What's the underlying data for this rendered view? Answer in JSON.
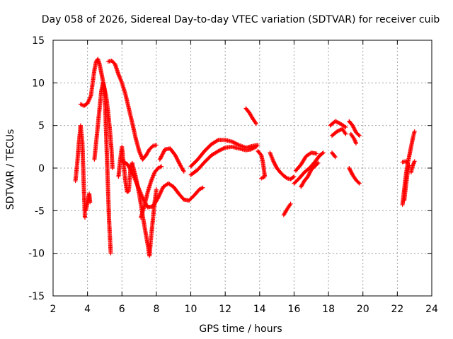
{
  "chart_data": {
    "type": "scatter",
    "title": "Day 058 of 2026, Sidereal Day-to-day VTEC variation (SDTVAR) for receiver cuib",
    "xlabel": "GPS time / hours",
    "ylabel": "SDTVAR / TECUs",
    "xlim": [
      2,
      24
    ],
    "ylim": [
      -15,
      15
    ],
    "xticks": [
      "2",
      "4",
      "6",
      "8",
      "10",
      "12",
      "14",
      "16",
      "18",
      "20",
      "22",
      "24"
    ],
    "yticks": [
      "15",
      "10",
      "5",
      "0",
      "-5",
      "-10",
      "-15"
    ],
    "grid": true,
    "marker": "+",
    "color": "#ff0000",
    "series": [
      {
        "name": "s1",
        "points": [
          [
            3.3,
            -1.5
          ],
          [
            3.4,
            0.5
          ],
          [
            3.5,
            3
          ],
          [
            3.6,
            5
          ],
          [
            3.7,
            3
          ],
          [
            3.75,
            0
          ],
          [
            3.8,
            -3
          ],
          [
            3.85,
            -5.8
          ]
        ]
      },
      {
        "name": "s2",
        "points": [
          [
            3.6,
            7.5
          ],
          [
            3.8,
            7.3
          ],
          [
            4.0,
            7.6
          ],
          [
            4.2,
            8.5
          ],
          [
            4.3,
            10
          ],
          [
            4.4,
            11.5
          ],
          [
            4.5,
            12.5
          ],
          [
            4.6,
            12.8
          ],
          [
            4.7,
            12.2
          ],
          [
            4.8,
            11.2
          ],
          [
            4.9,
            10.2
          ],
          [
            5.0,
            9.2
          ],
          [
            5.1,
            8.2
          ],
          [
            5.2,
            6.5
          ],
          [
            5.3,
            4.5
          ],
          [
            5.4,
            2
          ],
          [
            5.45,
            0
          ]
        ]
      },
      {
        "name": "s3",
        "points": [
          [
            3.9,
            -5
          ],
          [
            4.0,
            -4
          ],
          [
            4.1,
            -3
          ],
          [
            4.15,
            -4
          ]
        ]
      },
      {
        "name": "s4",
        "points": [
          [
            4.4,
            1
          ],
          [
            4.5,
            3
          ],
          [
            4.6,
            5
          ],
          [
            4.7,
            7
          ],
          [
            4.8,
            9
          ],
          [
            4.9,
            10
          ],
          [
            5.0,
            9
          ],
          [
            5.05,
            6
          ],
          [
            5.1,
            3
          ],
          [
            5.15,
            0
          ],
          [
            5.2,
            -3
          ],
          [
            5.25,
            -6
          ],
          [
            5.3,
            -8
          ],
          [
            5.35,
            -10
          ]
        ]
      },
      {
        "name": "s5",
        "points": [
          [
            5.2,
            12.5
          ],
          [
            5.4,
            12.6
          ],
          [
            5.6,
            12.2
          ],
          [
            5.8,
            11
          ],
          [
            6.0,
            10
          ],
          [
            6.2,
            8.7
          ],
          [
            6.4,
            7
          ],
          [
            6.6,
            5.3
          ],
          [
            6.8,
            3.5
          ],
          [
            7.0,
            2
          ],
          [
            7.2,
            1
          ],
          [
            7.4,
            1.5
          ],
          [
            7.6,
            2.2
          ],
          [
            7.8,
            2.6
          ],
          [
            8.0,
            2.7
          ]
        ]
      },
      {
        "name": "s6",
        "points": [
          [
            5.8,
            -1
          ],
          [
            5.9,
            1
          ],
          [
            6.0,
            2.5
          ],
          [
            6.1,
            0.5
          ],
          [
            6.2,
            -1.5
          ],
          [
            6.3,
            -2.8
          ],
          [
            6.4,
            -2.7
          ],
          [
            6.5,
            0
          ],
          [
            6.6,
            0.6
          ]
        ]
      },
      {
        "name": "s7",
        "points": [
          [
            6.6,
            0.5
          ],
          [
            6.8,
            -1
          ],
          [
            7.0,
            -3
          ],
          [
            7.2,
            -5.5
          ],
          [
            7.35,
            -7.3
          ],
          [
            7.5,
            -9
          ],
          [
            7.6,
            -10.3
          ],
          [
            7.7,
            -8
          ],
          [
            7.8,
            -6
          ],
          [
            7.9,
            -4
          ],
          [
            8.0,
            -2.5
          ]
        ]
      },
      {
        "name": "s8",
        "points": [
          [
            6.0,
            0.8
          ],
          [
            6.3,
            0.5
          ],
          [
            6.6,
            -0.5
          ],
          [
            6.9,
            -2
          ],
          [
            7.2,
            -3.5
          ],
          [
            7.5,
            -4.6
          ],
          [
            7.8,
            -4.5
          ],
          [
            8.1,
            -3.5
          ],
          [
            8.4,
            -2.2
          ],
          [
            8.7,
            -1.8
          ],
          [
            9.0,
            -2.2
          ],
          [
            9.3,
            -3
          ],
          [
            9.6,
            -3.7
          ],
          [
            9.9,
            -3.8
          ],
          [
            10.2,
            -3.2
          ],
          [
            10.5,
            -2.5
          ],
          [
            10.7,
            -2.3
          ]
        ]
      },
      {
        "name": "s9",
        "points": [
          [
            7.1,
            -5.8
          ],
          [
            7.3,
            -4.5
          ],
          [
            7.5,
            -2.8
          ],
          [
            7.7,
            -1.5
          ],
          [
            7.9,
            -0.5
          ],
          [
            8.1,
            0
          ],
          [
            8.3,
            0.2
          ]
        ]
      },
      {
        "name": "s10",
        "points": [
          [
            8.2,
            1
          ],
          [
            8.5,
            2.2
          ],
          [
            8.8,
            2.3
          ],
          [
            9.1,
            1.5
          ],
          [
            9.4,
            0.3
          ],
          [
            9.6,
            -0.4
          ]
        ]
      },
      {
        "name": "s11",
        "points": [
          [
            10.0,
            0.2
          ],
          [
            10.4,
            1
          ],
          [
            10.8,
            2
          ],
          [
            11.2,
            2.8
          ],
          [
            11.6,
            3.3
          ],
          [
            12.0,
            3.3
          ],
          [
            12.4,
            3.1
          ],
          [
            12.8,
            2.7
          ],
          [
            13.2,
            2.4
          ],
          [
            13.6,
            2.6
          ],
          [
            13.9,
            2.7
          ]
        ]
      },
      {
        "name": "s12",
        "points": [
          [
            10.0,
            -0.8
          ],
          [
            10.4,
            -0.2
          ],
          [
            10.8,
            0.7
          ],
          [
            11.2,
            1.5
          ],
          [
            11.6,
            2
          ],
          [
            12.0,
            2.4
          ],
          [
            12.4,
            2.5
          ],
          [
            12.8,
            2.3
          ],
          [
            13.2,
            2.1
          ],
          [
            13.5,
            2.2
          ],
          [
            13.8,
            2.5
          ]
        ]
      },
      {
        "name": "s13",
        "points": [
          [
            13.2,
            7
          ],
          [
            13.4,
            6.5
          ],
          [
            13.6,
            5.8
          ],
          [
            13.8,
            5.2
          ]
        ]
      },
      {
        "name": "s14",
        "points": [
          [
            13.9,
            2
          ],
          [
            14.1,
            1.5
          ],
          [
            14.2,
            0.6
          ],
          [
            14.3,
            -1
          ],
          [
            14.1,
            -1.2
          ]
        ]
      },
      {
        "name": "s15",
        "points": [
          [
            14.6,
            1.8
          ],
          [
            14.8,
            0.8
          ],
          [
            15.0,
            0
          ],
          [
            15.2,
            -0.5
          ],
          [
            15.4,
            -0.9
          ],
          [
            15.6,
            -1.2
          ],
          [
            15.8,
            -1.3
          ],
          [
            16.0,
            -1
          ]
        ]
      },
      {
        "name": "s16",
        "points": [
          [
            15.4,
            -5.5
          ],
          [
            15.6,
            -4.8
          ],
          [
            15.8,
            -4.2
          ]
        ]
      },
      {
        "name": "s17",
        "points": [
          [
            16.0,
            -1.8
          ],
          [
            16.3,
            -1.2
          ],
          [
            16.6,
            -0.5
          ],
          [
            16.9,
            0
          ],
          [
            17.2,
            0.7
          ],
          [
            17.5,
            1.5
          ],
          [
            17.7,
            1.8
          ]
        ]
      },
      {
        "name": "s18",
        "points": [
          [
            16.4,
            -2.2
          ],
          [
            16.6,
            -1.5
          ],
          [
            16.8,
            -1
          ],
          [
            17.0,
            -0.2
          ],
          [
            17.2,
            0.2
          ],
          [
            17.4,
            0.6
          ]
        ]
      },
      {
        "name": "s19",
        "points": [
          [
            16.1,
            -0.3
          ],
          [
            16.4,
            0.4
          ],
          [
            16.7,
            1.4
          ],
          [
            17.0,
            1.8
          ],
          [
            17.3,
            1.7
          ]
        ]
      },
      {
        "name": "s20",
        "points": [
          [
            18.1,
            5
          ],
          [
            18.4,
            5.5
          ],
          [
            18.7,
            5.2
          ],
          [
            19.0,
            4.8
          ]
        ]
      },
      {
        "name": "s21",
        "points": [
          [
            18.2,
            3.8
          ],
          [
            18.5,
            4.3
          ],
          [
            18.8,
            4.6
          ],
          [
            19.0,
            4
          ]
        ]
      },
      {
        "name": "s22",
        "points": [
          [
            18.2,
            1.8
          ],
          [
            18.4,
            1.3
          ]
        ]
      },
      {
        "name": "s23",
        "points": [
          [
            19.2,
            5.5
          ],
          [
            19.4,
            5
          ],
          [
            19.6,
            4.2
          ],
          [
            19.8,
            3.8
          ]
        ]
      },
      {
        "name": "s24",
        "points": [
          [
            19.3,
            4
          ],
          [
            19.5,
            3.4
          ],
          [
            19.6,
            2.9
          ]
        ]
      },
      {
        "name": "s25",
        "points": [
          [
            19.2,
            0
          ],
          [
            19.4,
            -0.8
          ],
          [
            19.6,
            -1.4
          ],
          [
            19.8,
            -1.8
          ]
        ]
      },
      {
        "name": "s26",
        "points": [
          [
            22.3,
            -4.3
          ],
          [
            22.4,
            -2.5
          ],
          [
            22.5,
            -0.8
          ],
          [
            22.6,
            0.5
          ],
          [
            22.7,
            1.5
          ],
          [
            22.8,
            2.5
          ],
          [
            22.9,
            3.5
          ],
          [
            23.0,
            4.3
          ]
        ]
      },
      {
        "name": "s27",
        "points": [
          [
            22.4,
            -3.8
          ],
          [
            22.5,
            -2
          ],
          [
            22.6,
            -0.5
          ],
          [
            22.7,
            0.3
          ]
        ]
      },
      {
        "name": "s28",
        "points": [
          [
            22.8,
            -0.5
          ],
          [
            22.9,
            0.3
          ],
          [
            23.0,
            0.8
          ]
        ]
      },
      {
        "name": "s29",
        "points": [
          [
            22.3,
            0.7
          ],
          [
            22.5,
            0.8
          ],
          [
            22.6,
            0.6
          ]
        ]
      }
    ]
  }
}
